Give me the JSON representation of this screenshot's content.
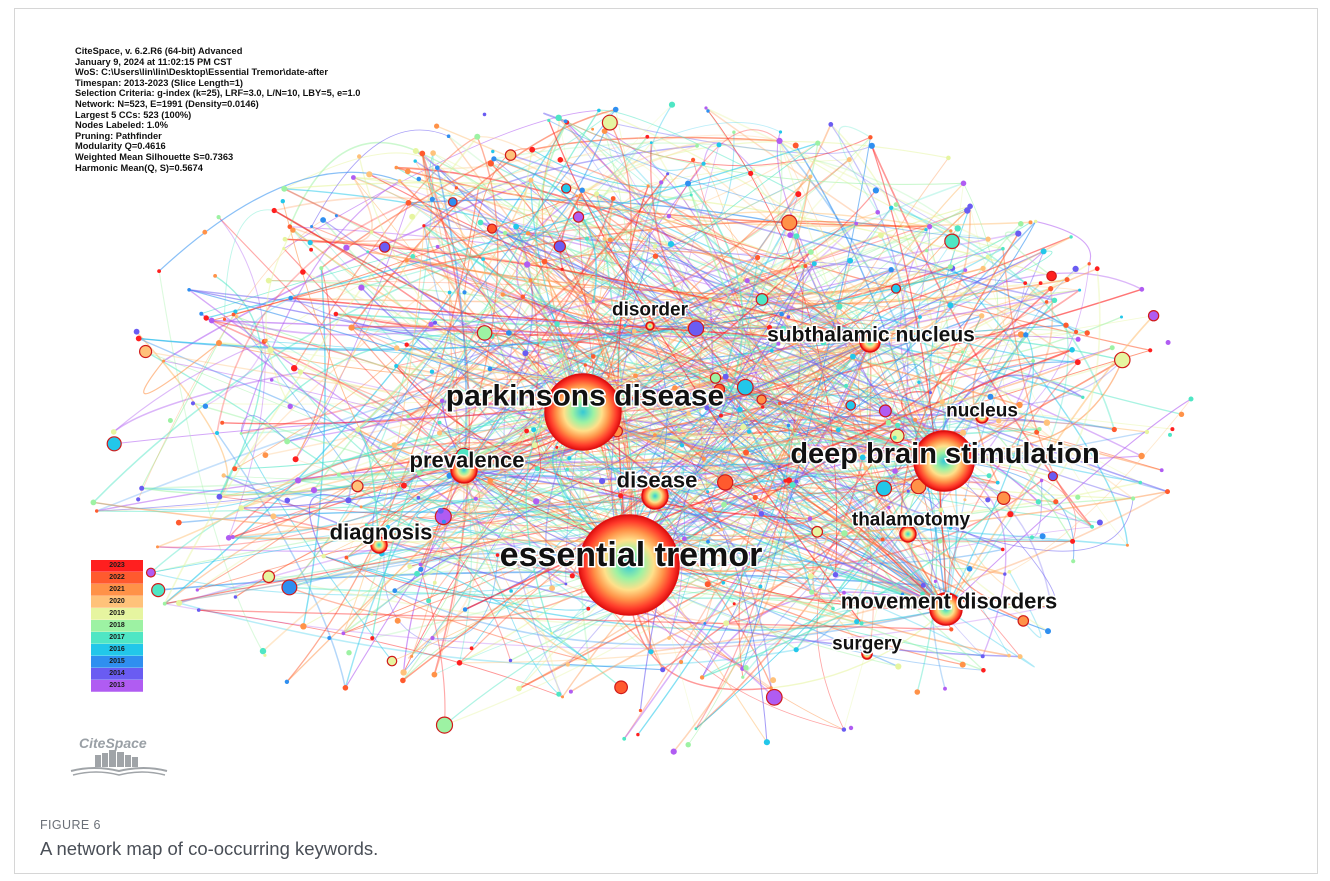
{
  "metadata": [
    "CiteSpace, v. 6.2.R6 (64-bit) Advanced",
    "January 9, 2024 at 11:02:15 PM CST",
    "WoS: C:\\Users\\lin\\lin\\Desktop\\Essential Tremor\\date-after",
    "Timespan: 2013-2023 (Slice Length=1)",
    "Selection Criteria: g-index (k=25), LRF=3.0, L/N=10, LBY=5, e=1.0",
    "Network: N=523, E=1991 (Density=0.0146)",
    "Largest 5 CCs: 523 (100%)",
    "Nodes Labeled: 1.0%",
    "Pruning: Pathfinder",
    "Modularity Q=0.4616",
    "Weighted Mean Silhouette S=0.7363",
    "Harmonic Mean(Q, S)=0.5674"
  ],
  "legend": [
    {
      "year": "2023",
      "color": "#ff1f1f"
    },
    {
      "year": "2022",
      "color": "#ff5a2e"
    },
    {
      "year": "2021",
      "color": "#ff9248"
    },
    {
      "year": "2020",
      "color": "#ffc27a"
    },
    {
      "year": "2019",
      "color": "#e6f5a0"
    },
    {
      "year": "2018",
      "color": "#9df2a3"
    },
    {
      "year": "2017",
      "color": "#4fe6c4"
    },
    {
      "year": "2016",
      "color": "#22c7ea"
    },
    {
      "year": "2015",
      "color": "#2f8ff0"
    },
    {
      "year": "2014",
      "color": "#6a5cf2"
    },
    {
      "year": "2013",
      "color": "#b05cf2"
    }
  ],
  "keywords": [
    {
      "label": "essential tremor",
      "size": "xl"
    },
    {
      "label": "parkinsons disease",
      "size": "lg"
    },
    {
      "label": "deep brain stimulation",
      "size": "lg"
    },
    {
      "label": "subthalamic nucleus",
      "size": "md"
    },
    {
      "label": "movement disorders",
      "size": "md"
    },
    {
      "label": "prevalence",
      "size": "md"
    },
    {
      "label": "disease",
      "size": "md"
    },
    {
      "label": "diagnosis",
      "size": "md"
    },
    {
      "label": "thalamotomy",
      "size": "sm"
    },
    {
      "label": "disorder",
      "size": "sm"
    },
    {
      "label": "nucleus",
      "size": "sm"
    },
    {
      "label": "surgery",
      "size": "sm"
    }
  ],
  "logo_text": "CiteSpace",
  "caption": {
    "label": "FIGURE 6",
    "text": "A network map of co-occurring keywords."
  }
}
